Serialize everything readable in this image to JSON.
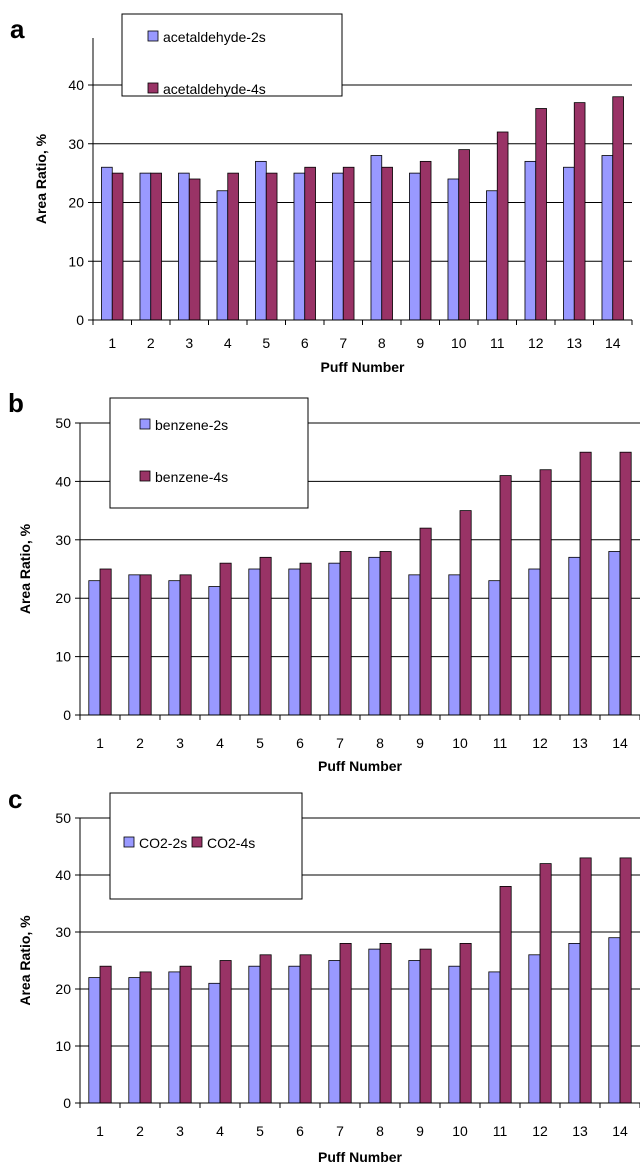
{
  "chart_data": [
    {
      "panel": "a",
      "type": "bar",
      "xlabel": "Puff Number",
      "ylabel": "Area Ratio, %",
      "ylim": [
        0,
        40
      ],
      "yticks": [
        0,
        10,
        20,
        30,
        40
      ],
      "grid": true,
      "categories": [
        "1",
        "2",
        "3",
        "4",
        "5",
        "6",
        "7",
        "8",
        "9",
        "10",
        "11",
        "12",
        "13",
        "14"
      ],
      "series": [
        {
          "name": "acetaldehyde-2s",
          "color": "#9999FF",
          "values": [
            26,
            25,
            25,
            22,
            27,
            25,
            25,
            28,
            25,
            24,
            22,
            27,
            26,
            28
          ]
        },
        {
          "name": "acetaldehyde-4s",
          "color": "#993366",
          "values": [
            25,
            25,
            24,
            25,
            25,
            26,
            26,
            26,
            27,
            29,
            32,
            36,
            37,
            38
          ]
        }
      ],
      "legend": {
        "layout": "stacked",
        "position": "top-left"
      }
    },
    {
      "panel": "b",
      "type": "bar",
      "xlabel": "Puff Number",
      "ylabel": "Area Ratio, %",
      "ylim": [
        0,
        50
      ],
      "yticks": [
        0,
        10,
        20,
        30,
        40,
        50
      ],
      "grid": true,
      "categories": [
        "1",
        "2",
        "3",
        "4",
        "5",
        "6",
        "7",
        "8",
        "9",
        "10",
        "11",
        "12",
        "13",
        "14"
      ],
      "series": [
        {
          "name": "benzene-2s",
          "color": "#9999FF",
          "values": [
            23,
            24,
            23,
            22,
            25,
            25,
            26,
            27,
            24,
            24,
            23,
            25,
            27,
            28
          ]
        },
        {
          "name": "benzene-4s",
          "color": "#993366",
          "values": [
            25,
            24,
            24,
            26,
            27,
            26,
            28,
            28,
            32,
            35,
            41,
            42,
            45,
            45
          ]
        }
      ],
      "legend": {
        "layout": "stacked",
        "position": "top-left"
      }
    },
    {
      "panel": "c",
      "type": "bar",
      "xlabel": "Puff Number",
      "ylabel": "Area Ratio, %",
      "ylim": [
        0,
        50
      ],
      "yticks": [
        0,
        10,
        20,
        30,
        40,
        50
      ],
      "grid": true,
      "categories": [
        "1",
        "2",
        "3",
        "4",
        "5",
        "6",
        "7",
        "8",
        "9",
        "10",
        "11",
        "12",
        "13",
        "14"
      ],
      "series": [
        {
          "name": "CO2-2s",
          "color": "#9999FF",
          "values": [
            22,
            22,
            23,
            21,
            24,
            24,
            25,
            27,
            25,
            24,
            23,
            26,
            28,
            29
          ]
        },
        {
          "name": "CO2-4s",
          "color": "#993366",
          "values": [
            24,
            23,
            24,
            25,
            26,
            26,
            28,
            28,
            27,
            28,
            38,
            42,
            43,
            43
          ]
        }
      ],
      "legend": {
        "layout": "inline",
        "position": "top-left"
      }
    }
  ]
}
